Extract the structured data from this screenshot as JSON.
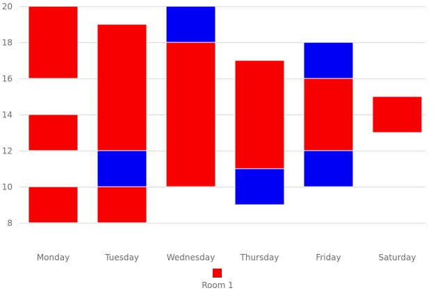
{
  "chart_data": {
    "type": "range-bar",
    "categories": [
      "Monday",
      "Tuesday",
      "Wednesday",
      "Thursday",
      "Friday",
      "Saturday"
    ],
    "ylim": [
      8,
      20
    ],
    "yticks": [
      8,
      10,
      12,
      14,
      16,
      18,
      20
    ],
    "grid": true,
    "legend": {
      "position": "bottom",
      "items": [
        {
          "label": "Room 1",
          "color": "#f70000"
        }
      ]
    },
    "colors": {
      "red": "#f70000",
      "blue": "#0000f5"
    },
    "segments": [
      {
        "category": "Monday",
        "start": 16,
        "end": 20,
        "color": "red"
      },
      {
        "category": "Monday",
        "start": 12,
        "end": 14,
        "color": "red"
      },
      {
        "category": "Monday",
        "start": 8,
        "end": 10,
        "color": "red"
      },
      {
        "category": "Tuesday",
        "start": 12,
        "end": 19,
        "color": "red"
      },
      {
        "category": "Tuesday",
        "start": 10,
        "end": 12,
        "color": "blue"
      },
      {
        "category": "Tuesday",
        "start": 8,
        "end": 10,
        "color": "red"
      },
      {
        "category": "Wednesday",
        "start": 18,
        "end": 20,
        "color": "blue"
      },
      {
        "category": "Wednesday",
        "start": 10,
        "end": 18,
        "color": "red"
      },
      {
        "category": "Thursday",
        "start": 11,
        "end": 17,
        "color": "red"
      },
      {
        "category": "Thursday",
        "start": 9,
        "end": 11,
        "color": "blue"
      },
      {
        "category": "Friday",
        "start": 16,
        "end": 18,
        "color": "blue"
      },
      {
        "category": "Friday",
        "start": 12,
        "end": 16,
        "color": "red"
      },
      {
        "category": "Friday",
        "start": 10,
        "end": 12,
        "color": "blue"
      },
      {
        "category": "Saturday",
        "start": 13,
        "end": 15,
        "color": "red"
      }
    ]
  }
}
